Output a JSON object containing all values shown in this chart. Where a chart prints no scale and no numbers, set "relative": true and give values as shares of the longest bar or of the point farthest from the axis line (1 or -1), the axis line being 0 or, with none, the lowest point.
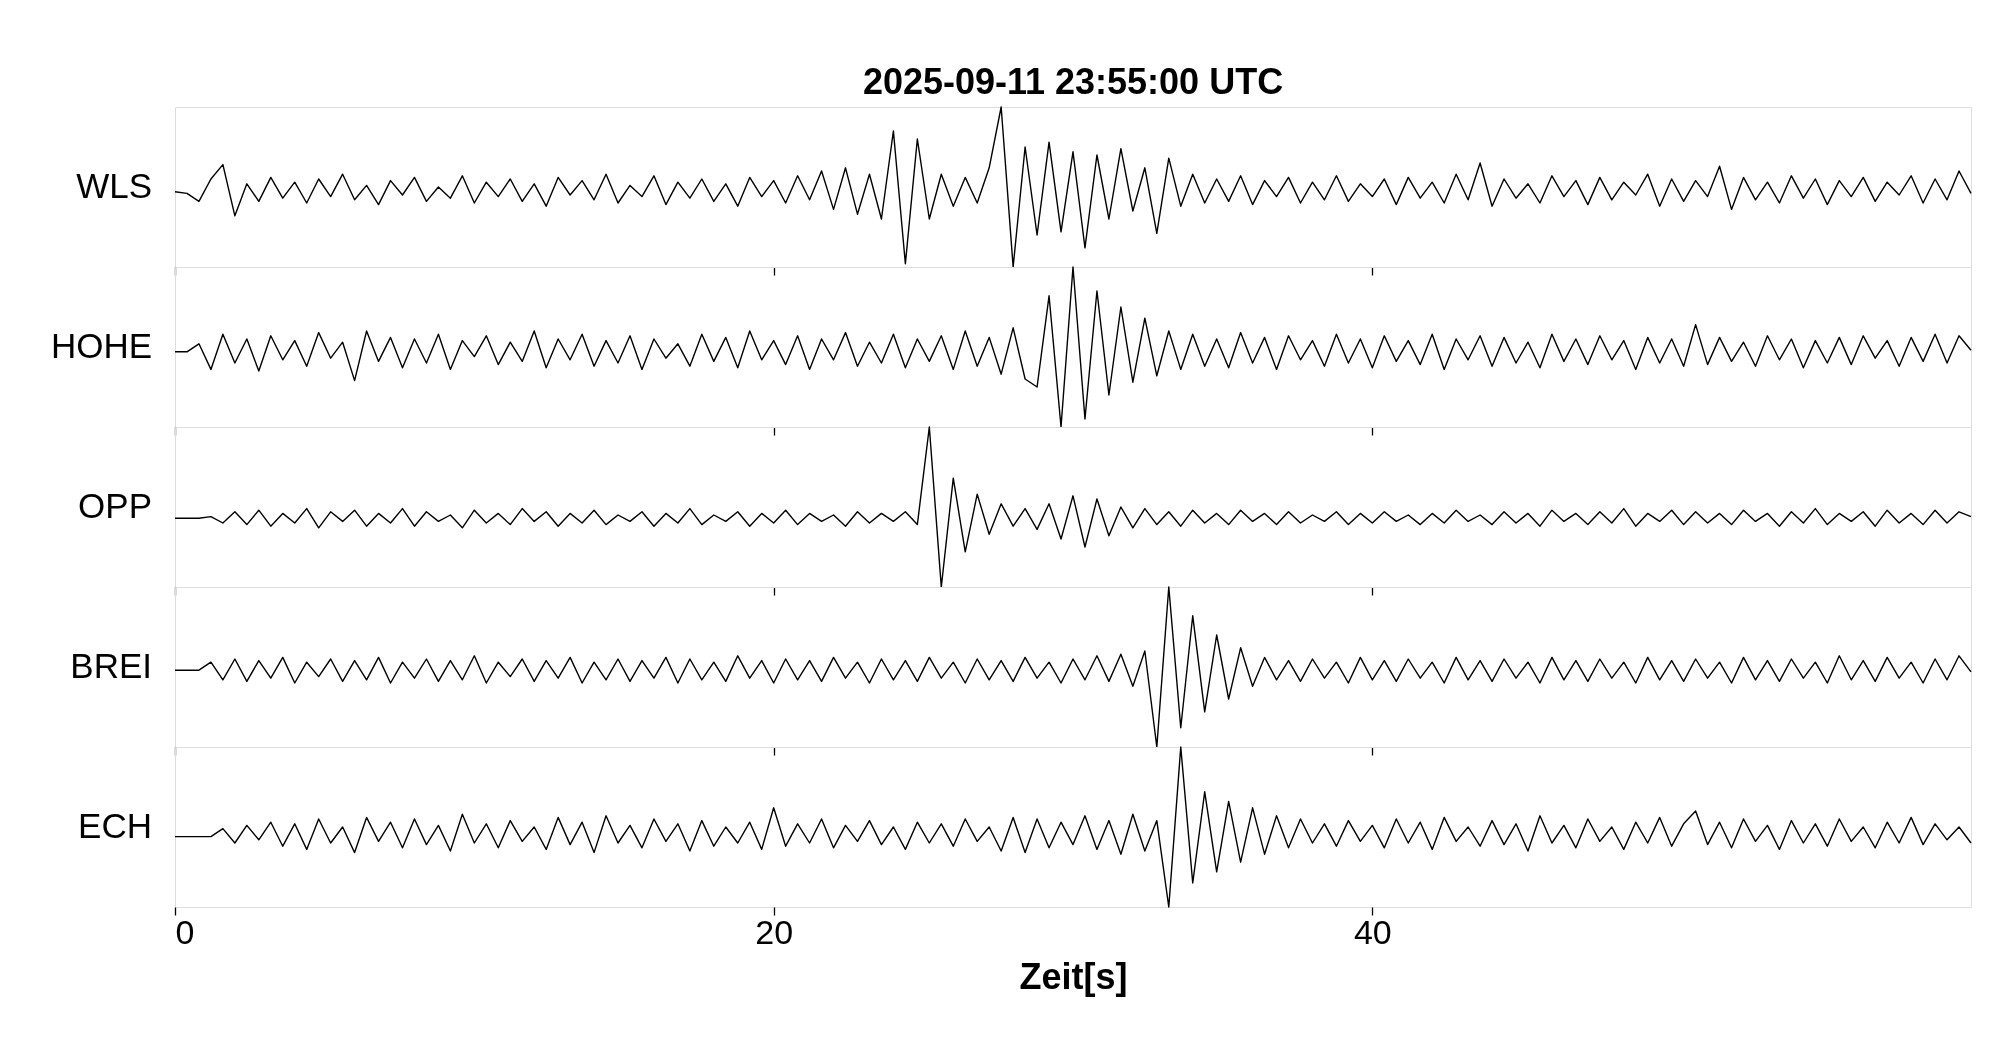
{
  "chart_data": [
    {
      "type": "line",
      "relative": true,
      "title": "2025-09-11  23:55:00 UTC",
      "ylabel": "WLS",
      "xlim": [
        0,
        60
      ],
      "xticks": [
        0,
        20,
        40
      ],
      "tick_labels": false,
      "x": [
        0,
        0.4,
        0.8,
        1.2,
        1.6,
        2,
        2.4,
        2.8,
        3.2,
        3.6,
        4,
        4.4,
        4.8,
        5.2,
        5.6,
        6,
        6.4,
        6.8,
        7.2,
        7.6,
        8,
        8.4,
        8.8,
        9.2,
        9.6,
        10,
        10.4,
        10.8,
        11.2,
        11.6,
        12,
        12.4,
        12.8,
        13.2,
        13.6,
        14,
        14.4,
        14.8,
        15.2,
        15.6,
        16,
        16.4,
        16.8,
        17.2,
        17.6,
        18,
        18.4,
        18.8,
        19.2,
        19.6,
        20,
        20.4,
        20.8,
        21.2,
        21.6,
        22,
        22.4,
        22.8,
        23.2,
        23.6,
        24,
        24.4,
        24.8,
        25.2,
        25.6,
        26,
        26.4,
        26.8,
        27.2,
        27.6,
        28,
        28.4,
        28.8,
        29.2,
        29.6,
        30,
        30.4,
        30.8,
        31.2,
        31.6,
        32,
        32.4,
        32.8,
        33.2,
        33.6,
        34,
        34.4,
        34.8,
        35.2,
        35.6,
        36,
        36.4,
        36.8,
        37.2,
        37.6,
        38,
        38.4,
        38.8,
        39.2,
        39.6,
        40,
        40.4,
        40.8,
        41.2,
        41.6,
        42,
        42.4,
        42.8,
        43.2,
        43.6,
        44,
        44.4,
        44.8,
        45.2,
        45.6,
        46,
        46.4,
        46.8,
        47.2,
        47.6,
        48,
        48.4,
        48.8,
        49.2,
        49.6,
        50,
        50.4,
        50.8,
        51.2,
        51.6,
        52,
        52.4,
        52.8,
        53.2,
        53.6,
        54,
        54.4,
        54.8,
        55.2,
        55.6,
        56,
        56.4,
        56.8,
        57.2,
        57.6,
        58,
        58.4,
        58.8,
        59.2,
        59.6,
        60
      ],
      "series": [
        {
          "color": "#000000",
          "values": [
            0.47,
            0.46,
            0.41,
            0.55,
            0.64,
            0.32,
            0.52,
            0.41,
            0.56,
            0.43,
            0.53,
            0.4,
            0.55,
            0.44,
            0.58,
            0.42,
            0.51,
            0.39,
            0.54,
            0.45,
            0.56,
            0.41,
            0.5,
            0.43,
            0.57,
            0.4,
            0.53,
            0.44,
            0.55,
            0.41,
            0.52,
            0.38,
            0.56,
            0.45,
            0.54,
            0.42,
            0.58,
            0.4,
            0.51,
            0.44,
            0.57,
            0.39,
            0.53,
            0.43,
            0.55,
            0.41,
            0.52,
            0.38,
            0.56,
            0.44,
            0.54,
            0.4,
            0.57,
            0.42,
            0.6,
            0.36,
            0.62,
            0.33,
            0.58,
            0.3,
            0.85,
            0.02,
            0.8,
            0.3,
            0.58,
            0.38,
            0.56,
            0.4,
            0.62,
            1.0,
            0.0,
            0.75,
            0.2,
            0.78,
            0.22,
            0.72,
            0.12,
            0.7,
            0.3,
            0.74,
            0.35,
            0.62,
            0.21,
            0.68,
            0.38,
            0.58,
            0.4,
            0.55,
            0.41,
            0.57,
            0.39,
            0.54,
            0.44,
            0.56,
            0.4,
            0.53,
            0.42,
            0.57,
            0.41,
            0.52,
            0.44,
            0.55,
            0.39,
            0.56,
            0.43,
            0.53,
            0.4,
            0.58,
            0.42,
            0.65,
            0.38,
            0.55,
            0.43,
            0.52,
            0.4,
            0.57,
            0.44,
            0.54,
            0.39,
            0.56,
            0.42,
            0.53,
            0.45,
            0.58,
            0.38,
            0.55,
            0.41,
            0.54,
            0.44,
            0.63,
            0.36,
            0.56,
            0.42,
            0.53,
            0.4,
            0.57,
            0.43,
            0.55,
            0.39,
            0.54,
            0.44,
            0.56,
            0.41,
            0.53,
            0.45,
            0.57,
            0.4,
            0.55,
            0.42,
            0.6,
            0.46
          ]
        }
      ]
    },
    {
      "type": "line",
      "relative": true,
      "ylabel": "HOHE",
      "xlim": [
        0,
        60
      ],
      "xticks": [
        0,
        20,
        40
      ],
      "tick_labels": false,
      "x": [
        0,
        0.4,
        0.8,
        1.2,
        1.6,
        2,
        2.4,
        2.8,
        3.2,
        3.6,
        4,
        4.4,
        4.8,
        5.2,
        5.6,
        6,
        6.4,
        6.8,
        7.2,
        7.6,
        8,
        8.4,
        8.8,
        9.2,
        9.6,
        10,
        10.4,
        10.8,
        11.2,
        11.6,
        12,
        12.4,
        12.8,
        13.2,
        13.6,
        14,
        14.4,
        14.8,
        15.2,
        15.6,
        16,
        16.4,
        16.8,
        17.2,
        17.6,
        18,
        18.4,
        18.8,
        19.2,
        19.6,
        20,
        20.4,
        20.8,
        21.2,
        21.6,
        22,
        22.4,
        22.8,
        23.2,
        23.6,
        24,
        24.4,
        24.8,
        25.2,
        25.6,
        26,
        26.4,
        26.8,
        27.2,
        27.6,
        28,
        28.4,
        28.8,
        29.2,
        29.6,
        30,
        30.4,
        30.8,
        31.2,
        31.6,
        32,
        32.4,
        32.8,
        33.2,
        33.6,
        34,
        34.4,
        34.8,
        35.2,
        35.6,
        36,
        36.4,
        36.8,
        37.2,
        37.6,
        38,
        38.4,
        38.8,
        39.2,
        39.6,
        40,
        40.4,
        40.8,
        41.2,
        41.6,
        42,
        42.4,
        42.8,
        43.2,
        43.6,
        44,
        44.4,
        44.8,
        45.2,
        45.6,
        46,
        46.4,
        46.8,
        47.2,
        47.6,
        48,
        48.4,
        48.8,
        49.2,
        49.6,
        50,
        50.4,
        50.8,
        51.2,
        51.6,
        52,
        52.4,
        52.8,
        53.2,
        53.6,
        54,
        54.4,
        54.8,
        55.2,
        55.6,
        56,
        56.4,
        56.8,
        57.2,
        57.6,
        58,
        58.4,
        58.8,
        59.2,
        59.6,
        60
      ],
      "series": [
        {
          "color": "#000000",
          "values": [
            0.47,
            0.47,
            0.52,
            0.36,
            0.58,
            0.4,
            0.55,
            0.35,
            0.57,
            0.42,
            0.54,
            0.38,
            0.59,
            0.43,
            0.53,
            0.29,
            0.6,
            0.41,
            0.56,
            0.37,
            0.55,
            0.4,
            0.58,
            0.36,
            0.54,
            0.44,
            0.57,
            0.39,
            0.53,
            0.41,
            0.6,
            0.37,
            0.55,
            0.42,
            0.58,
            0.38,
            0.54,
            0.4,
            0.57,
            0.36,
            0.55,
            0.43,
            0.52,
            0.38,
            0.58,
            0.41,
            0.56,
            0.37,
            0.6,
            0.42,
            0.54,
            0.39,
            0.57,
            0.36,
            0.55,
            0.42,
            0.59,
            0.38,
            0.53,
            0.4,
            0.58,
            0.37,
            0.55,
            0.41,
            0.57,
            0.36,
            0.6,
            0.38,
            0.56,
            0.33,
            0.62,
            0.3,
            0.25,
            0.82,
            0.0,
            1.0,
            0.05,
            0.85,
            0.2,
            0.75,
            0.28,
            0.68,
            0.32,
            0.6,
            0.36,
            0.58,
            0.38,
            0.55,
            0.37,
            0.59,
            0.4,
            0.56,
            0.36,
            0.57,
            0.42,
            0.54,
            0.38,
            0.58,
            0.4,
            0.55,
            0.37,
            0.57,
            0.41,
            0.54,
            0.39,
            0.58,
            0.36,
            0.55,
            0.42,
            0.57,
            0.38,
            0.56,
            0.4,
            0.53,
            0.37,
            0.58,
            0.41,
            0.55,
            0.39,
            0.57,
            0.42,
            0.54,
            0.36,
            0.56,
            0.4,
            0.55,
            0.38,
            0.64,
            0.39,
            0.56,
            0.41,
            0.53,
            0.38,
            0.57,
            0.42,
            0.55,
            0.37,
            0.54,
            0.4,
            0.56,
            0.39,
            0.57,
            0.43,
            0.54,
            0.38,
            0.56,
            0.41,
            0.58,
            0.4,
            0.57,
            0.48
          ]
        }
      ]
    },
    {
      "type": "line",
      "relative": true,
      "ylabel": "OPP",
      "xlim": [
        0,
        60
      ],
      "xticks": [
        0,
        20,
        40
      ],
      "tick_labels": false,
      "x": [
        0,
        0.4,
        0.8,
        1.2,
        1.6,
        2,
        2.4,
        2.8,
        3.2,
        3.6,
        4,
        4.4,
        4.8,
        5.2,
        5.6,
        6,
        6.4,
        6.8,
        7.2,
        7.6,
        8,
        8.4,
        8.8,
        9.2,
        9.6,
        10,
        10.4,
        10.8,
        11.2,
        11.6,
        12,
        12.4,
        12.8,
        13.2,
        13.6,
        14,
        14.4,
        14.8,
        15.2,
        15.6,
        16,
        16.4,
        16.8,
        17.2,
        17.6,
        18,
        18.4,
        18.8,
        19.2,
        19.6,
        20,
        20.4,
        20.8,
        21.2,
        21.6,
        22,
        22.4,
        22.8,
        23.2,
        23.6,
        24,
        24.4,
        24.8,
        25.2,
        25.6,
        26,
        26.4,
        26.8,
        27.2,
        27.6,
        28,
        28.4,
        28.8,
        29.2,
        29.6,
        30,
        30.4,
        30.8,
        31.2,
        31.6,
        32,
        32.4,
        32.8,
        33.2,
        33.6,
        34,
        34.4,
        34.8,
        35.2,
        35.6,
        36,
        36.4,
        36.8,
        37.2,
        37.6,
        38,
        38.4,
        38.8,
        39.2,
        39.6,
        40,
        40.4,
        40.8,
        41.2,
        41.6,
        42,
        42.4,
        42.8,
        43.2,
        43.6,
        44,
        44.4,
        44.8,
        45.2,
        45.6,
        46,
        46.4,
        46.8,
        47.2,
        47.6,
        48,
        48.4,
        48.8,
        49.2,
        49.6,
        50,
        50.4,
        50.8,
        51.2,
        51.6,
        52,
        52.4,
        52.8,
        53.2,
        53.6,
        54,
        54.4,
        54.8,
        55.2,
        55.6,
        56,
        56.4,
        56.8,
        57.2,
        57.6,
        58,
        58.4,
        58.8,
        59.2,
        59.6,
        60
      ],
      "series": [
        {
          "color": "#000000",
          "values": [
            0.43,
            0.43,
            0.43,
            0.44,
            0.4,
            0.47,
            0.39,
            0.48,
            0.38,
            0.46,
            0.4,
            0.49,
            0.37,
            0.47,
            0.41,
            0.48,
            0.38,
            0.46,
            0.4,
            0.49,
            0.38,
            0.47,
            0.41,
            0.45,
            0.37,
            0.48,
            0.4,
            0.46,
            0.39,
            0.49,
            0.41,
            0.47,
            0.38,
            0.46,
            0.4,
            0.48,
            0.39,
            0.45,
            0.41,
            0.47,
            0.38,
            0.46,
            0.4,
            0.49,
            0.39,
            0.45,
            0.41,
            0.47,
            0.38,
            0.46,
            0.4,
            0.48,
            0.39,
            0.46,
            0.41,
            0.45,
            0.38,
            0.47,
            0.4,
            0.46,
            0.41,
            0.47,
            0.39,
            1.0,
            0.0,
            0.68,
            0.22,
            0.58,
            0.33,
            0.52,
            0.38,
            0.49,
            0.36,
            0.52,
            0.3,
            0.57,
            0.25,
            0.55,
            0.32,
            0.5,
            0.37,
            0.49,
            0.39,
            0.47,
            0.38,
            0.48,
            0.4,
            0.46,
            0.39,
            0.48,
            0.41,
            0.46,
            0.39,
            0.47,
            0.4,
            0.45,
            0.41,
            0.47,
            0.39,
            0.46,
            0.4,
            0.47,
            0.41,
            0.45,
            0.39,
            0.46,
            0.4,
            0.48,
            0.41,
            0.45,
            0.39,
            0.47,
            0.4,
            0.46,
            0.38,
            0.48,
            0.41,
            0.46,
            0.39,
            0.47,
            0.4,
            0.49,
            0.38,
            0.46,
            0.41,
            0.48,
            0.39,
            0.47,
            0.4,
            0.46,
            0.39,
            0.48,
            0.41,
            0.46,
            0.38,
            0.47,
            0.4,
            0.49,
            0.39,
            0.46,
            0.41,
            0.47,
            0.38,
            0.48,
            0.4,
            0.46,
            0.39,
            0.48,
            0.4,
            0.47,
            0.44
          ]
        }
      ]
    },
    {
      "type": "line",
      "relative": true,
      "ylabel": "BREI",
      "xlim": [
        0,
        60
      ],
      "xticks": [
        0,
        20,
        40
      ],
      "tick_labels": false,
      "x": [
        0,
        0.4,
        0.8,
        1.2,
        1.6,
        2,
        2.4,
        2.8,
        3.2,
        3.6,
        4,
        4.4,
        4.8,
        5.2,
        5.6,
        6,
        6.4,
        6.8,
        7.2,
        7.6,
        8,
        8.4,
        8.8,
        9.2,
        9.6,
        10,
        10.4,
        10.8,
        11.2,
        11.6,
        12,
        12.4,
        12.8,
        13.2,
        13.6,
        14,
        14.4,
        14.8,
        15.2,
        15.6,
        16,
        16.4,
        16.8,
        17.2,
        17.6,
        18,
        18.4,
        18.8,
        19.2,
        19.6,
        20,
        20.4,
        20.8,
        21.2,
        21.6,
        22,
        22.4,
        22.8,
        23.2,
        23.6,
        24,
        24.4,
        24.8,
        25.2,
        25.6,
        26,
        26.4,
        26.8,
        27.2,
        27.6,
        28,
        28.4,
        28.8,
        29.2,
        29.6,
        30,
        30.4,
        30.8,
        31.2,
        31.6,
        32,
        32.4,
        32.8,
        33.2,
        33.6,
        34,
        34.4,
        34.8,
        35.2,
        35.6,
        36,
        36.4,
        36.8,
        37.2,
        37.6,
        38,
        38.4,
        38.8,
        39.2,
        39.6,
        40,
        40.4,
        40.8,
        41.2,
        41.6,
        42,
        42.4,
        42.8,
        43.2,
        43.6,
        44,
        44.4,
        44.8,
        45.2,
        45.6,
        46,
        46.4,
        46.8,
        47.2,
        47.6,
        48,
        48.4,
        48.8,
        49.2,
        49.6,
        50,
        50.4,
        50.8,
        51.2,
        51.6,
        52,
        52.4,
        52.8,
        53.2,
        53.6,
        54,
        54.4,
        54.8,
        55.2,
        55.6,
        56,
        56.4,
        56.8,
        57.2,
        57.6,
        58,
        58.4,
        58.8,
        59.2,
        59.6,
        60
      ],
      "series": [
        {
          "color": "#000000",
          "values": [
            0.48,
            0.48,
            0.48,
            0.53,
            0.42,
            0.55,
            0.41,
            0.54,
            0.43,
            0.56,
            0.4,
            0.53,
            0.44,
            0.55,
            0.41,
            0.54,
            0.42,
            0.56,
            0.4,
            0.53,
            0.43,
            0.55,
            0.41,
            0.54,
            0.42,
            0.57,
            0.4,
            0.53,
            0.44,
            0.55,
            0.41,
            0.54,
            0.43,
            0.56,
            0.4,
            0.53,
            0.42,
            0.55,
            0.41,
            0.54,
            0.43,
            0.56,
            0.4,
            0.55,
            0.42,
            0.53,
            0.41,
            0.57,
            0.43,
            0.54,
            0.4,
            0.55,
            0.42,
            0.54,
            0.41,
            0.56,
            0.43,
            0.53,
            0.4,
            0.55,
            0.42,
            0.54,
            0.41,
            0.56,
            0.43,
            0.53,
            0.4,
            0.55,
            0.42,
            0.54,
            0.41,
            0.56,
            0.43,
            0.53,
            0.4,
            0.55,
            0.42,
            0.57,
            0.41,
            0.58,
            0.38,
            0.6,
            0.0,
            1.0,
            0.12,
            0.82,
            0.22,
            0.7,
            0.3,
            0.62,
            0.38,
            0.56,
            0.42,
            0.54,
            0.41,
            0.55,
            0.43,
            0.53,
            0.4,
            0.56,
            0.42,
            0.54,
            0.41,
            0.55,
            0.43,
            0.53,
            0.4,
            0.56,
            0.42,
            0.54,
            0.41,
            0.55,
            0.43,
            0.53,
            0.4,
            0.56,
            0.42,
            0.54,
            0.41,
            0.55,
            0.43,
            0.53,
            0.4,
            0.56,
            0.42,
            0.54,
            0.41,
            0.55,
            0.43,
            0.53,
            0.4,
            0.56,
            0.42,
            0.54,
            0.41,
            0.55,
            0.43,
            0.53,
            0.4,
            0.57,
            0.42,
            0.54,
            0.41,
            0.56,
            0.43,
            0.53,
            0.4,
            0.55,
            0.42,
            0.57,
            0.47
          ]
        }
      ]
    },
    {
      "type": "line",
      "relative": true,
      "ylabel": "ECH",
      "xlabel": "Zeit[s]",
      "xlim": [
        0,
        60
      ],
      "xticks": [
        0,
        20,
        40
      ],
      "tick_labels": "x",
      "x": [
        0,
        0.4,
        0.8,
        1.2,
        1.6,
        2,
        2.4,
        2.8,
        3.2,
        3.6,
        4,
        4.4,
        4.8,
        5.2,
        5.6,
        6,
        6.4,
        6.8,
        7.2,
        7.6,
        8,
        8.4,
        8.8,
        9.2,
        9.6,
        10,
        10.4,
        10.8,
        11.2,
        11.6,
        12,
        12.4,
        12.8,
        13.2,
        13.6,
        14,
        14.4,
        14.8,
        15.2,
        15.6,
        16,
        16.4,
        16.8,
        17.2,
        17.6,
        18,
        18.4,
        18.8,
        19.2,
        19.6,
        20,
        20.4,
        20.8,
        21.2,
        21.6,
        22,
        22.4,
        22.8,
        23.2,
        23.6,
        24,
        24.4,
        24.8,
        25.2,
        25.6,
        26,
        26.4,
        26.8,
        27.2,
        27.6,
        28,
        28.4,
        28.8,
        29.2,
        29.6,
        30,
        30.4,
        30.8,
        31.2,
        31.6,
        32,
        32.4,
        32.8,
        33.2,
        33.6,
        34,
        34.4,
        34.8,
        35.2,
        35.6,
        36,
        36.4,
        36.8,
        37.2,
        37.6,
        38,
        38.4,
        38.8,
        39.2,
        39.6,
        40,
        40.4,
        40.8,
        41.2,
        41.6,
        42,
        42.4,
        42.8,
        43.2,
        43.6,
        44,
        44.4,
        44.8,
        45.2,
        45.6,
        46,
        46.4,
        46.8,
        47.2,
        47.6,
        48,
        48.4,
        48.8,
        49.2,
        49.6,
        50,
        50.4,
        50.8,
        51.2,
        51.6,
        52,
        52.4,
        52.8,
        53.2,
        53.6,
        54,
        54.4,
        54.8,
        55.2,
        55.6,
        56,
        56.4,
        56.8,
        57.2,
        57.6,
        58,
        58.4,
        58.8,
        59.2,
        59.6,
        60
      ],
      "series": [
        {
          "color": "#000000",
          "values": [
            0.44,
            0.44,
            0.44,
            0.44,
            0.49,
            0.4,
            0.51,
            0.42,
            0.53,
            0.38,
            0.52,
            0.36,
            0.55,
            0.4,
            0.5,
            0.34,
            0.56,
            0.41,
            0.53,
            0.37,
            0.55,
            0.39,
            0.51,
            0.35,
            0.58,
            0.4,
            0.52,
            0.37,
            0.54,
            0.41,
            0.5,
            0.36,
            0.56,
            0.39,
            0.53,
            0.34,
            0.57,
            0.4,
            0.51,
            0.37,
            0.55,
            0.41,
            0.52,
            0.35,
            0.54,
            0.38,
            0.5,
            0.4,
            0.53,
            0.36,
            0.62,
            0.38,
            0.52,
            0.4,
            0.55,
            0.37,
            0.51,
            0.41,
            0.54,
            0.39,
            0.5,
            0.36,
            0.53,
            0.4,
            0.52,
            0.38,
            0.55,
            0.41,
            0.5,
            0.35,
            0.56,
            0.34,
            0.55,
            0.37,
            0.53,
            0.39,
            0.57,
            0.36,
            0.54,
            0.33,
            0.58,
            0.35,
            0.54,
            0.0,
            1.0,
            0.15,
            0.72,
            0.22,
            0.66,
            0.28,
            0.62,
            0.33,
            0.57,
            0.37,
            0.55,
            0.4,
            0.52,
            0.38,
            0.54,
            0.41,
            0.51,
            0.37,
            0.55,
            0.4,
            0.53,
            0.36,
            0.56,
            0.41,
            0.5,
            0.38,
            0.54,
            0.39,
            0.52,
            0.35,
            0.57,
            0.4,
            0.51,
            0.37,
            0.55,
            0.41,
            0.5,
            0.36,
            0.53,
            0.4,
            0.56,
            0.38,
            0.52,
            0.6,
            0.39,
            0.53,
            0.37,
            0.55,
            0.41,
            0.51,
            0.36,
            0.54,
            0.4,
            0.52,
            0.38,
            0.55,
            0.41,
            0.5,
            0.37,
            0.53,
            0.4,
            0.56,
            0.39,
            0.52,
            0.42,
            0.5,
            0.4
          ]
        }
      ]
    }
  ]
}
